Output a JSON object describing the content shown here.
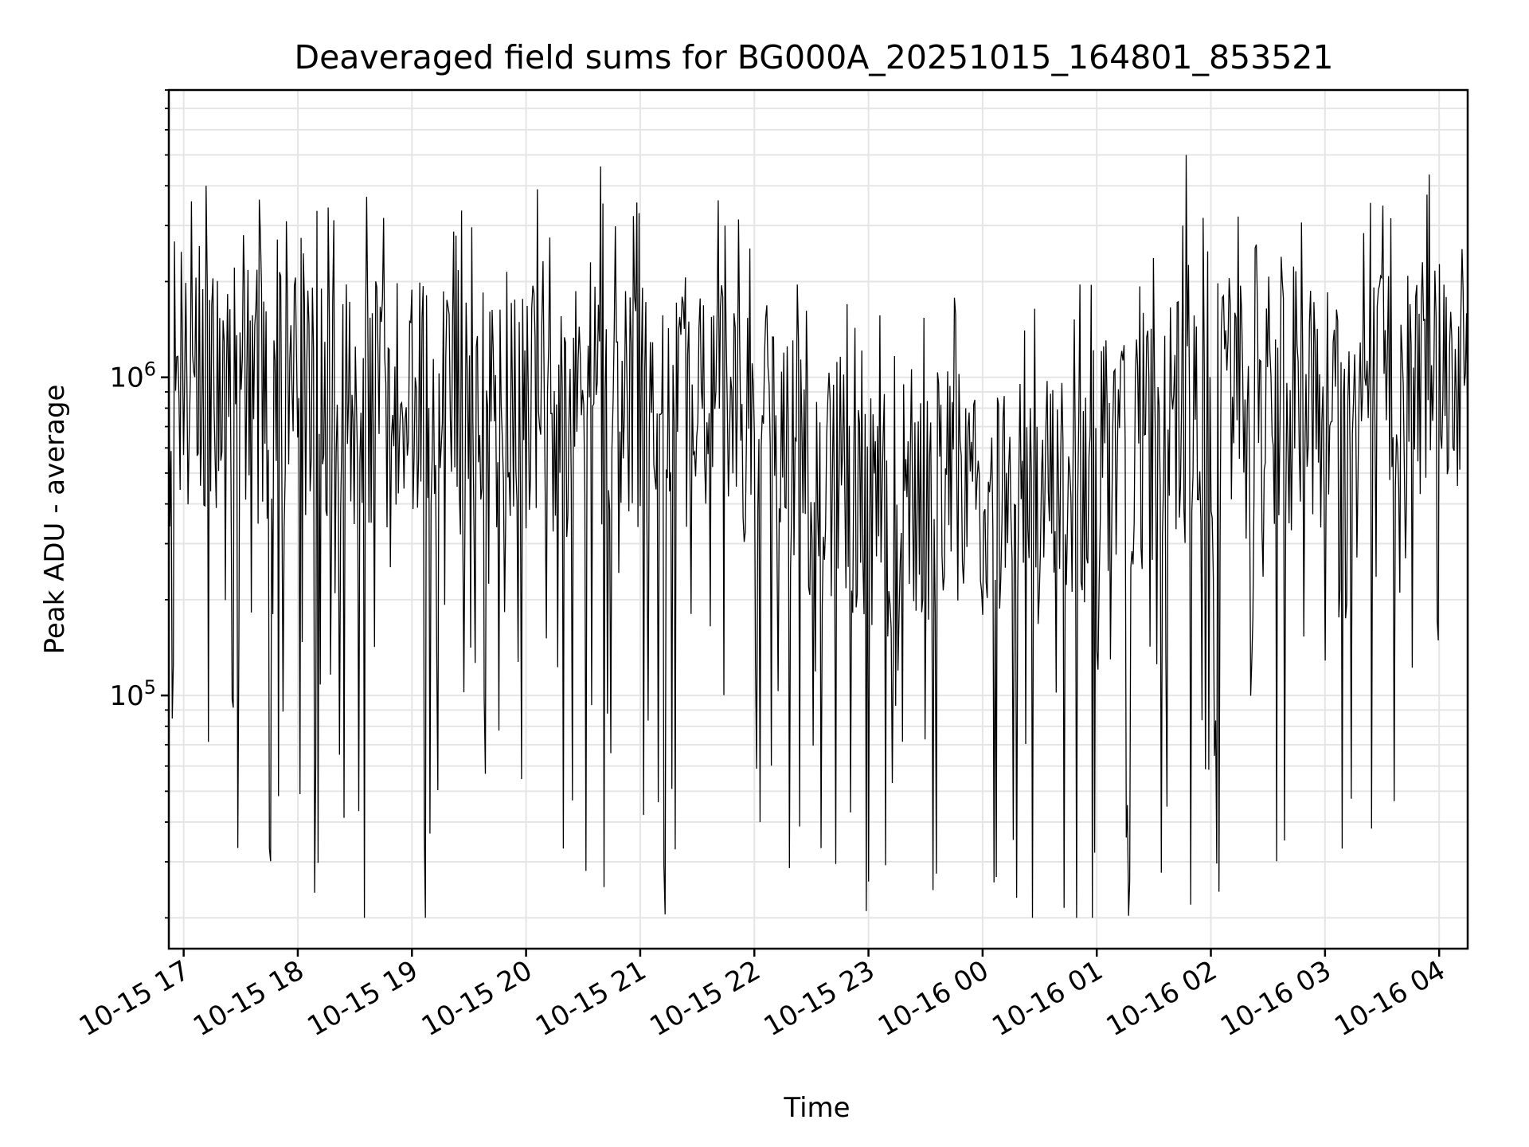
{
  "chart_data": {
    "type": "line",
    "title": "Deaveraged field sums for BG000A_20251015_164801_853521",
    "xlabel": "Time",
    "ylabel": "Peak ADU - average",
    "yscale": "log",
    "ylim": [
      16000,
      8000000
    ],
    "xlim_hours": [
      16.87,
      28.25
    ],
    "x_tick_values_hours": [
      17,
      18,
      19,
      20,
      21,
      22,
      23,
      24,
      25,
      26,
      27,
      28
    ],
    "x_tick_labels": [
      "10-15 17",
      "10-15 18",
      "10-15 19",
      "10-15 20",
      "10-15 21",
      "10-15 22",
      "10-15 23",
      "10-16 00",
      "10-16 01",
      "10-16 02",
      "10-16 03",
      "10-16 04"
    ],
    "y_tick_labels": [
      {
        "base": "10",
        "exp": "5",
        "value": 100000
      },
      {
        "base": "10",
        "exp": "6",
        "value": 1000000
      }
    ],
    "grid": true,
    "line_color": "#000000",
    "series": [
      {
        "name": "Peak ADU - average",
        "envelope_hours": [
          16.87,
          17.5,
          18,
          18.5,
          19,
          19.5,
          20,
          20.5,
          21,
          21.5,
          22,
          22.5,
          23,
          23.5,
          24,
          24.5,
          25,
          25.5,
          26,
          26.5,
          27,
          27.5,
          28,
          28.25
        ],
        "envelope_center": [
          800000,
          900000,
          800000,
          850000,
          800000,
          800000,
          750000,
          800000,
          800000,
          850000,
          700000,
          500000,
          350000,
          420000,
          450000,
          420000,
          500000,
          650000,
          750000,
          800000,
          850000,
          900000,
          1100000,
          1000000
        ],
        "spikes": [
          {
            "x": 17.2,
            "y": 4000000
          },
          {
            "x": 17.52,
            "y": 2800000
          },
          {
            "x": 17.75,
            "y": 33000
          },
          {
            "x": 18.15,
            "y": 24000
          },
          {
            "x": 18.58,
            "y": 20000
          },
          {
            "x": 19.12,
            "y": 20000
          },
          {
            "x": 20.1,
            "y": 3900000
          },
          {
            "x": 20.65,
            "y": 4600000
          },
          {
            "x": 20.68,
            "y": 25000
          },
          {
            "x": 21.22,
            "y": 20500
          },
          {
            "x": 21.68,
            "y": 3600000
          },
          {
            "x": 22.98,
            "y": 21000
          },
          {
            "x": 23.0,
            "y": 26000
          },
          {
            "x": 25.78,
            "y": 5000000
          },
          {
            "x": 25.82,
            "y": 22000
          },
          {
            "x": 26.65,
            "y": 35000
          },
          {
            "x": 27.15,
            "y": 33000
          },
          {
            "x": 27.85,
            "y": 2300000
          }
        ]
      }
    ]
  }
}
